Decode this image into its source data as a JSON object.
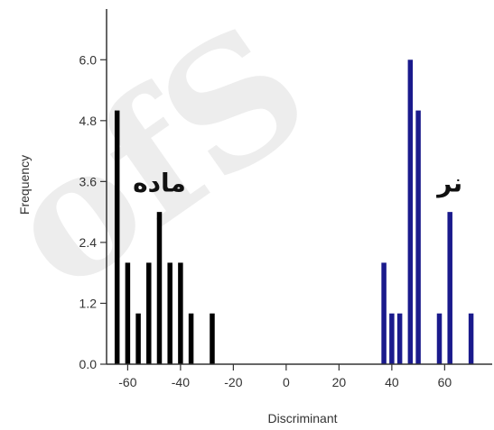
{
  "chart_data": {
    "type": "bar",
    "xlabel": "Discriminant",
    "ylabel": "Frequency",
    "xlim": [
      -68,
      78
    ],
    "ylim": [
      0,
      7
    ],
    "x_ticks": [
      -60,
      -40,
      -20,
      0,
      20,
      40,
      60
    ],
    "y_ticks": [
      0.0,
      1.2,
      2.4,
      3.6,
      4.8,
      6.0
    ],
    "x_tick_labels": [
      "-60",
      "-40",
      "-20",
      "0",
      "20",
      "40",
      "60"
    ],
    "y_tick_labels": [
      "0.0",
      "1.2",
      "2.4",
      "3.6",
      "4.8",
      "6.0"
    ],
    "grid": false,
    "series": [
      {
        "name": "ماده",
        "color": "#000000",
        "x": [
          -64,
          -60,
          -56,
          -52,
          -48,
          -44,
          -40,
          -36,
          -28
        ],
        "values": [
          5,
          2,
          1,
          2,
          3,
          2,
          2,
          1,
          1
        ]
      },
      {
        "name": "نر",
        "color": "#1a1a8c",
        "x": [
          37,
          40,
          43,
          47,
          50,
          58,
          62,
          70
        ],
        "values": [
          2,
          1,
          1,
          6,
          5,
          1,
          3,
          1
        ]
      }
    ],
    "annotations": [
      {
        "text": "ماده",
        "x": -48,
        "y": 3.4
      },
      {
        "text": "نر",
        "x": 62,
        "y": 3.4
      }
    ]
  },
  "watermark": {
    "text": "ofS"
  }
}
